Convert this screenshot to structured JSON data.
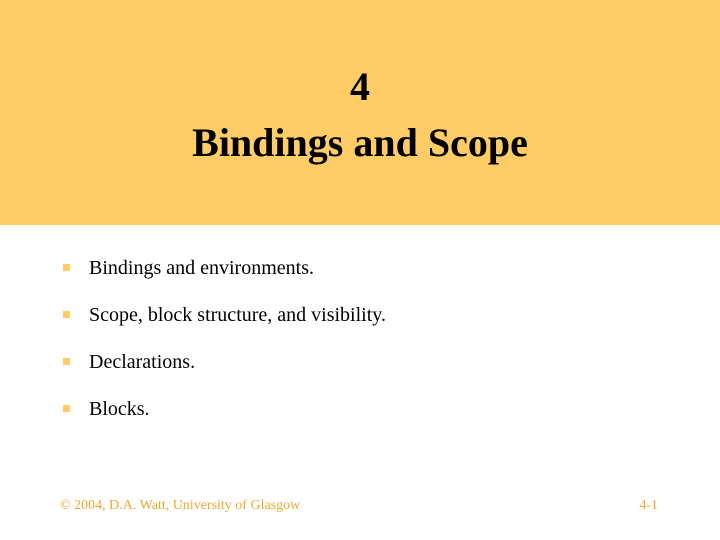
{
  "slide": {
    "number": "4",
    "title": "Bindings and Scope",
    "bullets": [
      "Bindings and environments.",
      "Scope, block structure, and visibility.",
      "Declarations.",
      "Blocks."
    ],
    "footer_left": "© 2004, D.A. Watt, University of Glasgow",
    "footer_right": "4-1"
  },
  "colors": {
    "title_band": "#ffcc66",
    "bullet_marker": "#ffcc66",
    "footer_text": "#f0a830"
  }
}
